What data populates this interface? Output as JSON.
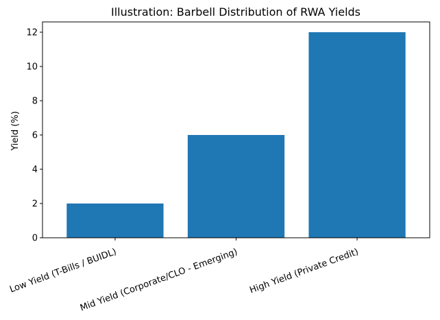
{
  "chart_data": {
    "type": "bar",
    "title": "Illustration: Barbell Distribution of RWA Yields",
    "xlabel": "",
    "ylabel": "Yield (%)",
    "categories": [
      "Low Yield (T-Bills / BUIDL)",
      "Mid Yield (Corporate/CLO - Emerging)",
      "High Yield (Private Credit)"
    ],
    "values": [
      2,
      6,
      12
    ],
    "ylim": [
      0,
      12.6
    ],
    "yticks": [
      0,
      2,
      4,
      6,
      8,
      10,
      12
    ],
    "bar_color": "#1f77b4",
    "grid": false,
    "legend": "none",
    "category_label_rotation_deg": 20
  }
}
